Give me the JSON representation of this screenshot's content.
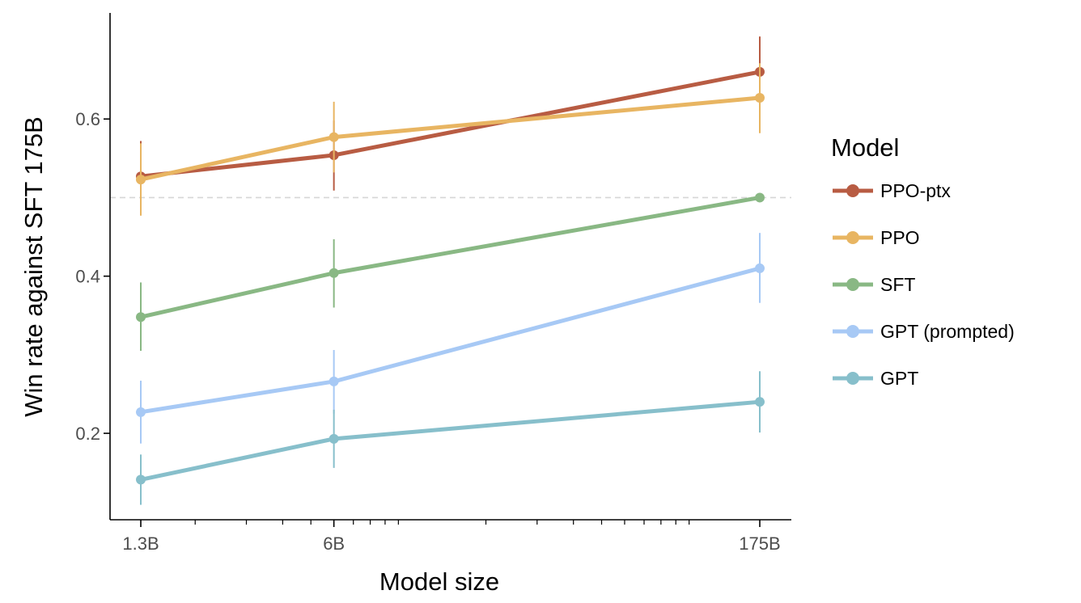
{
  "chart_data": {
    "type": "line",
    "xlabel": "Model size",
    "ylabel": "Win rate against SFT 175B",
    "x_scale": "log",
    "x_ticks": [
      {
        "value": 1.3,
        "label": "1.3B"
      },
      {
        "value": 6,
        "label": "6B"
      },
      {
        "value": 175,
        "label": "175B"
      }
    ],
    "y_ticks": [
      {
        "value": 0.2,
        "label": "0.2"
      },
      {
        "value": 0.4,
        "label": "0.4"
      },
      {
        "value": 0.6,
        "label": "0.6"
      }
    ],
    "ylim": [
      0.09,
      0.735
    ],
    "reference_line": 0.5,
    "grid": false,
    "legend": {
      "title": "Model",
      "position": "right"
    },
    "series": [
      {
        "name": "PPO-ptx",
        "color": "#b85c43",
        "x": [
          1.3,
          6,
          175
        ],
        "y": [
          0.527,
          0.554,
          0.66
        ],
        "err_low": [
          0.481,
          0.509,
          0.614
        ],
        "err_high": [
          0.572,
          0.598,
          0.705
        ]
      },
      {
        "name": "PPO",
        "color": "#e8b562",
        "x": [
          1.3,
          6,
          175
        ],
        "y": [
          0.523,
          0.577,
          0.627
        ],
        "err_low": [
          0.477,
          0.532,
          0.582
        ],
        "err_high": [
          0.569,
          0.622,
          0.671
        ]
      },
      {
        "name": "SFT",
        "color": "#89b884",
        "x": [
          1.3,
          6,
          175
        ],
        "y": [
          0.348,
          0.404,
          0.5
        ],
        "err_low": [
          0.305,
          0.36,
          0.5
        ],
        "err_high": [
          0.392,
          0.447,
          0.5
        ]
      },
      {
        "name": "GPT (prompted)",
        "color": "#a7c9f5",
        "x": [
          1.3,
          6,
          175
        ],
        "y": [
          0.227,
          0.266,
          0.41
        ],
        "err_low": [
          0.187,
          0.225,
          0.366
        ],
        "err_high": [
          0.267,
          0.306,
          0.455
        ]
      },
      {
        "name": "GPT",
        "color": "#87bfcb",
        "x": [
          1.3,
          6,
          175
        ],
        "y": [
          0.141,
          0.193,
          0.24
        ],
        "err_low": [
          0.109,
          0.156,
          0.201
        ],
        "err_high": [
          0.173,
          0.23,
          0.279
        ]
      }
    ]
  }
}
